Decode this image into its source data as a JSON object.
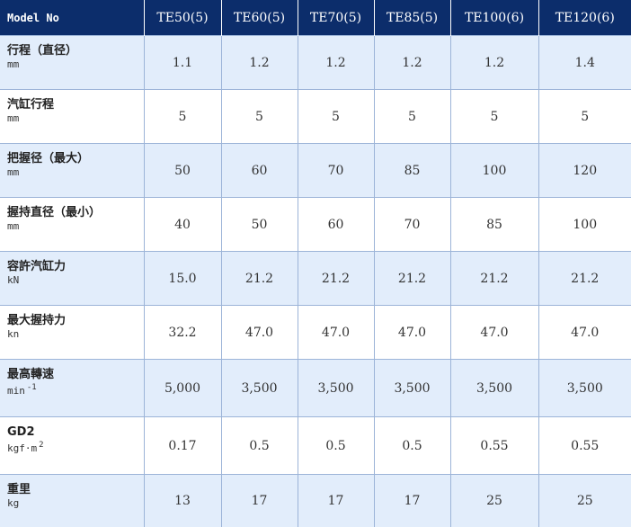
{
  "header": {
    "model_label": "Model No",
    "models": [
      "TE50(5)",
      "TE60(5)",
      "TE70(5)",
      "TE85(5)",
      "TE100(6)",
      "TE120(6)"
    ]
  },
  "rows": [
    {
      "name": "行程（直径）",
      "unit": "mm",
      "unit_sup": "",
      "values": [
        "1.1",
        "1.2",
        "1.2",
        "1.2",
        "1.2",
        "1.4"
      ]
    },
    {
      "name": "汽缸行程",
      "unit": "mm",
      "unit_sup": "",
      "values": [
        "5",
        "5",
        "5",
        "5",
        "5",
        "5"
      ]
    },
    {
      "name": "把握径（最大）",
      "unit": "mm",
      "unit_sup": "",
      "values": [
        "50",
        "60",
        "70",
        "85",
        "100",
        "120"
      ]
    },
    {
      "name": "握持直径（最小）",
      "unit": "mm",
      "unit_sup": "",
      "values": [
        "40",
        "50",
        "60",
        "70",
        "85",
        "100"
      ]
    },
    {
      "name": "容許汽缸力",
      "unit": "kN",
      "unit_sup": "",
      "values": [
        "15.0",
        "21.2",
        "21.2",
        "21.2",
        "21.2",
        "21.2"
      ]
    },
    {
      "name": "最大握持力",
      "unit": "kn",
      "unit_sup": "",
      "values": [
        "32.2",
        "47.0",
        "47.0",
        "47.0",
        "47.0",
        "47.0"
      ]
    },
    {
      "name": "最高轉速",
      "unit": "min",
      "unit_sup": "-1",
      "values": [
        "5,000",
        "3,500",
        "3,500",
        "3,500",
        "3,500",
        "3,500"
      ]
    },
    {
      "name": "GD2",
      "unit": "kgf·m",
      "unit_sup": "2",
      "values": [
        "0.17",
        "0.5",
        "0.5",
        "0.5",
        "0.55",
        "0.55"
      ]
    },
    {
      "name": "重里",
      "unit": "kg",
      "unit_sup": "",
      "values": [
        "13",
        "17",
        "17",
        "17",
        "25",
        "25"
      ]
    }
  ]
}
